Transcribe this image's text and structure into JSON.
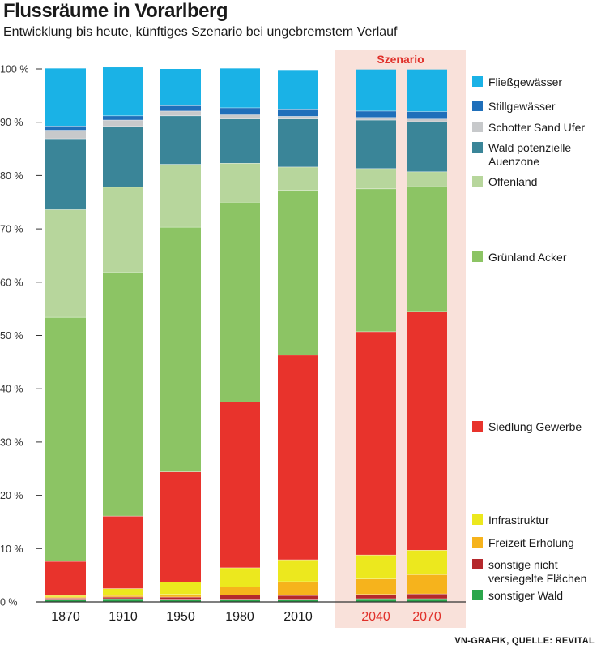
{
  "header": {
    "title": "Flussräume in Vorarlberg",
    "subtitle": "Entwicklung bis heute, künftiges Szenario bei ungebremstem Verlauf"
  },
  "source": "VN-GRAFIK, QUELLE: REVITAL",
  "scenario_label": "Szenario",
  "chart_data": {
    "type": "bar",
    "stacked": true,
    "title": "Flussräume in Vorarlberg",
    "subtitle": "Entwicklung bis heute, künftiges Szenario bei ungebremstem Verlauf",
    "xlabel": "",
    "ylabel": "",
    "ylim": [
      0,
      100
    ],
    "y_ticks": [
      "0 %",
      "10 %",
      "20 %",
      "30 %",
      "40 %",
      "50 %",
      "60 %",
      "70 %",
      "80 %",
      "90 %",
      "100 %"
    ],
    "grid": false,
    "categories": [
      "1870",
      "1910",
      "1950",
      "1980",
      "2010",
      "2040",
      "2070"
    ],
    "scenario_categories": [
      "2040",
      "2070"
    ],
    "legend_position": "right",
    "series": [
      {
        "name": "sonstiger Wald",
        "color": "#2aa64b",
        "values": [
          0.5,
          0.6,
          0.5,
          0.5,
          0.5,
          0.6,
          0.6
        ]
      },
      {
        "name": "sonstige nicht versiegelte Flächen",
        "color": "#b5282c",
        "values": [
          0.2,
          0.3,
          0.4,
          0.8,
          0.7,
          0.8,
          0.9
        ]
      },
      {
        "name": "Freizeit Erholung",
        "color": "#f6b31c",
        "values": [
          0.2,
          0.3,
          0.5,
          1.5,
          2.6,
          2.9,
          3.6
        ]
      },
      {
        "name": "Infrastruktur",
        "color": "#ece81e",
        "values": [
          0.3,
          1.3,
          2.3,
          3.6,
          4.1,
          4.5,
          4.6
        ]
      },
      {
        "name": "Siedlung Gewerbe",
        "color": "#e8332c",
        "values": [
          6.4,
          13.6,
          20.7,
          31.1,
          38.4,
          41.9,
          44.8
        ]
      },
      {
        "name": "Grünland Acker",
        "color": "#8cc464",
        "values": [
          45.8,
          45.8,
          45.9,
          37.5,
          30.9,
          26.8,
          23.4
        ]
      },
      {
        "name": "Offenland",
        "color": "#b7d69c",
        "values": [
          20.2,
          15.9,
          11.8,
          7.3,
          4.4,
          3.8,
          2.8
        ]
      },
      {
        "name": "Wald potenzielle Auenzone",
        "color": "#3a8598",
        "values": [
          13.3,
          11.4,
          9.1,
          8.3,
          9.0,
          9.1,
          9.4
        ]
      },
      {
        "name": "Schotter Sand Ufer",
        "color": "#c7c9cb",
        "values": [
          1.6,
          1.2,
          0.9,
          0.8,
          0.5,
          0.5,
          0.5
        ]
      },
      {
        "name": "Stillgewässer",
        "color": "#1f6fba",
        "values": [
          0.8,
          0.8,
          1.0,
          1.3,
          1.4,
          1.2,
          1.4
        ]
      },
      {
        "name": "Fließgewässer",
        "color": "#1ab2e6",
        "values": [
          10.8,
          9.1,
          6.9,
          7.4,
          7.3,
          7.8,
          7.9
        ]
      }
    ],
    "legend": [
      {
        "label": "Fließgewässer",
        "color": "#1ab2e6"
      },
      {
        "label": "Stillgewässer",
        "color": "#1f6fba"
      },
      {
        "label": "Schotter Sand Ufer",
        "color": "#c7c9cb"
      },
      {
        "label": "Wald potenzielle Auenzone",
        "color": "#3a8598"
      },
      {
        "label": "Offenland",
        "color": "#b7d69c"
      },
      {
        "label": "Grünland Acker",
        "color": "#8cc464"
      },
      {
        "label": "Siedlung Gewerbe",
        "color": "#e8332c"
      },
      {
        "label": "Infrastruktur",
        "color": "#ece81e"
      },
      {
        "label": "Freizeit Erholung",
        "color": "#f6b31c"
      },
      {
        "label": "sonstige nicht versiegelte Flächen",
        "color": "#b5282c"
      },
      {
        "label": "sonstiger Wald",
        "color": "#2aa64b"
      }
    ]
  }
}
